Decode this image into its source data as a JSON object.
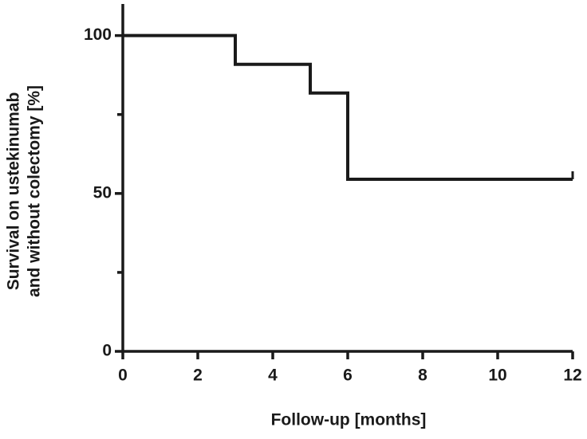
{
  "chart_data": {
    "type": "line",
    "x_label": "Follow-up  [months]",
    "y_label": [
      "Survival on ustekinumab",
      "and without colectomy [%]"
    ],
    "x": [
      0,
      3,
      3,
      5,
      5,
      6,
      6,
      12
    ],
    "series": [
      {
        "color": "#1a1a1a",
        "values": [
          100,
          100,
          90.9,
          90.9,
          81.8,
          81.8,
          54.5,
          54.5
        ]
      }
    ],
    "step": true,
    "censored": {
      "x": [
        12
      ],
      "values": [
        54.5
      ]
    },
    "xlim": [
      0,
      12
    ],
    "xticks": [
      0,
      2,
      4,
      6,
      8,
      10,
      12
    ],
    "ylim": [
      0,
      110
    ],
    "yticks": [
      0,
      50,
      100
    ],
    "yminor_ticks": [
      25,
      75
    ],
    "grid": false
  }
}
